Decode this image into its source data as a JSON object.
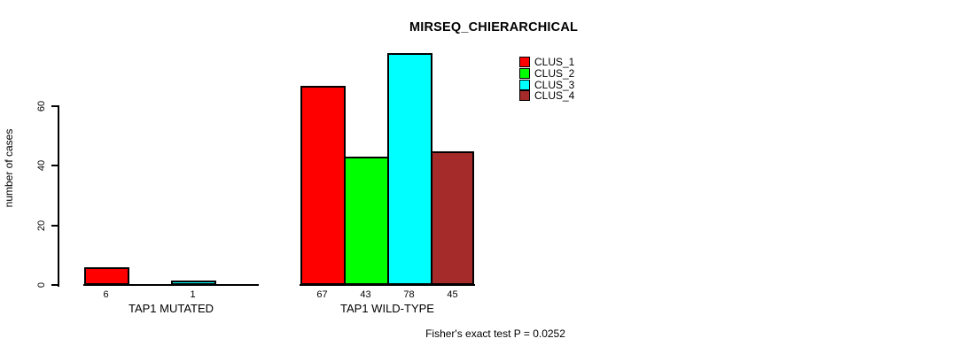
{
  "chart_data": {
    "type": "bar",
    "title": "MIRSEQ_CHIERARCHICAL",
    "ylabel": "number of cases",
    "xlabel": "",
    "yticks": [
      0,
      20,
      40,
      60
    ],
    "ylim": [
      0,
      78
    ],
    "grid": false,
    "legend_position": "top-right",
    "series": [
      {
        "name": "CLUS_1",
        "color": "#ff0000"
      },
      {
        "name": "CLUS_2",
        "color": "#00ff00"
      },
      {
        "name": "CLUS_3",
        "color": "#00ffff"
      },
      {
        "name": "CLUS_4",
        "color": "#a52a2a"
      }
    ],
    "groups": [
      {
        "label": "TAP1 MUTATED",
        "values": [
          6,
          null,
          1,
          null
        ]
      },
      {
        "label": "TAP1 WILD-TYPE",
        "values": [
          67,
          43,
          78,
          45
        ]
      }
    ],
    "annotation": "Fisher's exact test P = 0.0252"
  }
}
